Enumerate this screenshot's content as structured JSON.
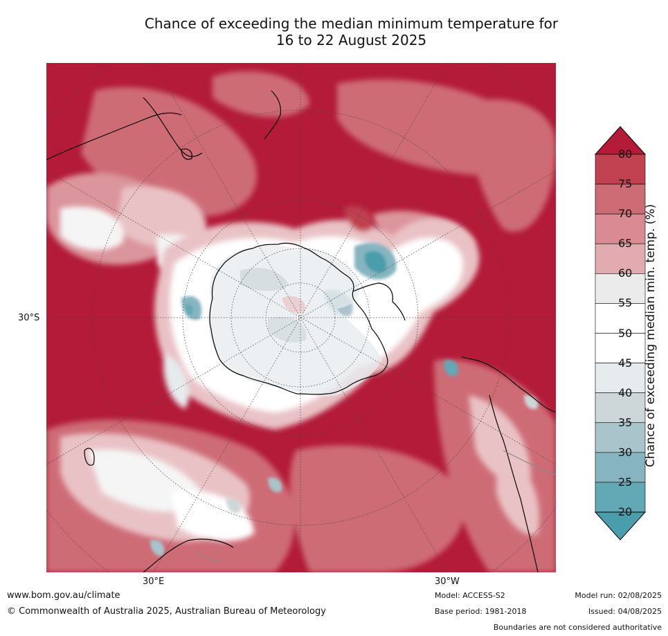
{
  "title_line1": "Chance of exceeding the median minimum temperature for",
  "title_line2": "16 to 22 August 2025",
  "map": {
    "lat_label": "30°S",
    "lon_label_left": "30°E",
    "lon_label_right": "30°W",
    "colors": {
      "high": "#b31b38",
      "above_75": "#c0414f",
      "above_70": "#ce6c76",
      "above_65": "#db959c",
      "above_60": "#e9c2c6",
      "neutral": "#f5f5f5",
      "white": "#ffffff",
      "below_45": "#e6ebed",
      "below_40": "#cdd6d9",
      "below_35": "#a9c4ca",
      "below_30": "#86b5c1",
      "below_25": "#63a8b5",
      "low": "#4a9dac"
    }
  },
  "colorbar": {
    "label": "Chance of exceeding median min. temp. (%)",
    "ticks": [
      "80",
      "75",
      "70",
      "65",
      "60",
      "55",
      "50",
      "45",
      "40",
      "35",
      "30",
      "25",
      "20"
    ],
    "bins": [
      "#c0414f",
      "#ce6c76",
      "#d98a92",
      "#e2abb0",
      "#ebebeb",
      "#ffffff",
      "#ffffff",
      "#e6ebed",
      "#cdd6d9",
      "#a9c4ca",
      "#86b5c1",
      "#63a8b5"
    ],
    "top_color": "#b31b38",
    "bottom_color": "#4a9dac"
  },
  "footer": {
    "url": "www.bom.gov.au/climate",
    "copyright": "© Commonwealth of Australia 2025, Australian Bureau of Meteorology",
    "model": "Model: ACCESS-S2",
    "base_period": "Base period: 1981-2018",
    "model_run": "Model run: 02/08/2025",
    "issued": "Issued: 04/08/2025",
    "disclaimer": "Boundaries are not considered authoritative"
  }
}
